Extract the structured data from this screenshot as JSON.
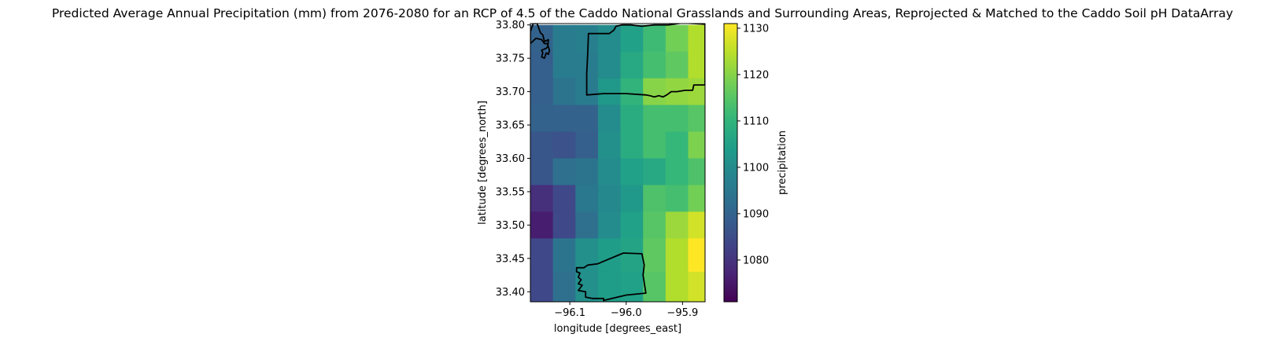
{
  "chart_data": {
    "type": "heatmap",
    "title": "Predicted Average Annual Precipitation (mm) from 2076-2080 for an RCP of 4.5 of the Caddo National Grasslands and Surrounding Areas, Reprojected & Matched to the Caddo Soil pH DataArray",
    "xlabel": "longitude [degrees_east]",
    "ylabel": "latitude [degrees_north]",
    "xlim": [
      -96.17,
      -95.86
    ],
    "ylim": [
      33.385,
      33.802
    ],
    "xticks": [
      -96.1,
      -96.0,
      -95.9
    ],
    "xtick_labels": [
      "−96.1",
      "−96.0",
      "−95.9"
    ],
    "yticks": [
      33.4,
      33.45,
      33.5,
      33.55,
      33.6,
      33.65,
      33.7,
      33.75,
      33.8
    ],
    "ytick_labels": [
      "33.40",
      "33.45",
      "33.50",
      "33.55",
      "33.60",
      "33.65",
      "33.70",
      "33.75",
      "33.80"
    ],
    "colormap": "viridis",
    "colorbar": {
      "label": "precipitation",
      "range": [
        1071,
        1131
      ],
      "ticks": [
        1080,
        1090,
        1100,
        1110,
        1120,
        1130
      ],
      "tick_labels": [
        "1080",
        "1090",
        "1100",
        "1110",
        "1120",
        "1130"
      ]
    },
    "row_lat_centers": [
      33.78,
      33.74,
      33.7,
      33.66,
      33.62,
      33.58,
      33.54,
      33.5,
      33.46,
      33.4
    ],
    "col_lon_centers": [
      -96.15,
      -96.11,
      -96.07,
      -96.03,
      -95.99,
      -95.95,
      -95.91,
      -95.87
    ],
    "grid_values": [
      [
        1090,
        1096,
        1097,
        1100,
        1105,
        1112,
        1118,
        1124
      ],
      [
        1089,
        1096,
        1096,
        1100,
        1107,
        1113,
        1116,
        1124
      ],
      [
        1089,
        1094,
        1096,
        1103,
        1110,
        1120,
        1121,
        1122
      ],
      [
        1090,
        1090,
        1090,
        1100,
        1108,
        1113,
        1113,
        1115
      ],
      [
        1087,
        1086,
        1089,
        1101,
        1108,
        1113,
        1111,
        1119
      ],
      [
        1087,
        1093,
        1094,
        1100,
        1105,
        1107,
        1111,
        1114
      ],
      [
        1079,
        1084,
        1095,
        1099,
        1103,
        1114,
        1113,
        1118
      ],
      [
        1076,
        1084,
        1093,
        1100,
        1105,
        1115,
        1122,
        1127
      ],
      [
        1084,
        1094,
        1101,
        1104,
        1106,
        1116,
        1124,
        1131
      ],
      [
        1084,
        1093,
        1101,
        1104,
        1105,
        1115,
        1124,
        1127
      ]
    ],
    "grid": false,
    "legend": "colorbar-right",
    "outline_color": "#000000",
    "boundaries": [
      [
        [
          -96.17,
          33.79
        ],
        [
          -96.165,
          33.802
        ],
        [
          -96.158,
          33.802
        ],
        [
          -96.152,
          33.788
        ],
        [
          -96.148,
          33.785
        ],
        [
          -96.145,
          33.775
        ],
        [
          -96.138,
          33.778
        ],
        [
          -96.139,
          33.768
        ],
        [
          -96.142,
          33.765
        ],
        [
          -96.15,
          33.762
        ],
        [
          -96.148,
          33.758
        ],
        [
          -96.15,
          33.752
        ],
        [
          -96.145,
          33.75
        ],
        [
          -96.142,
          33.758
        ],
        [
          -96.138,
          33.756
        ],
        [
          -96.136,
          33.762
        ],
        [
          -96.14,
          33.772
        ],
        [
          -96.145,
          33.772
        ],
        [
          -96.15,
          33.778
        ],
        [
          -96.16,
          33.78
        ],
        [
          -96.17,
          33.772
        ]
      ],
      [
        [
          -96.067,
          33.787
        ],
        [
          -96.03,
          33.787
        ],
        [
          -96.022,
          33.792
        ],
        [
          -96.018,
          33.798
        ],
        [
          -96.008,
          33.8
        ],
        [
          -95.992,
          33.8
        ],
        [
          -95.972,
          33.798
        ],
        [
          -95.95,
          33.8
        ],
        [
          -95.925,
          33.8
        ],
        [
          -95.9,
          33.803
        ],
        [
          -95.88,
          33.802
        ],
        [
          -95.86,
          33.801
        ],
        [
          -95.86,
          33.71
        ],
        [
          -95.88,
          33.71
        ],
        [
          -95.882,
          33.702
        ],
        [
          -95.895,
          33.702
        ],
        [
          -95.91,
          33.7
        ],
        [
          -95.92,
          33.7
        ],
        [
          -95.928,
          33.695
        ],
        [
          -95.935,
          33.692
        ],
        [
          -95.942,
          33.694
        ],
        [
          -95.95,
          33.692
        ],
        [
          -95.958,
          33.694
        ],
        [
          -95.965,
          33.695
        ],
        [
          -96.0,
          33.697
        ],
        [
          -96.04,
          33.697
        ],
        [
          -96.07,
          33.695
        ],
        [
          -96.07,
          33.727
        ],
        [
          -96.068,
          33.76
        ]
      ],
      [
        [
          -96.005,
          33.458
        ],
        [
          -95.972,
          33.457
        ],
        [
          -95.968,
          33.44
        ],
        [
          -95.97,
          33.425
        ],
        [
          -95.965,
          33.398
        ],
        [
          -96.0,
          33.395
        ],
        [
          -96.04,
          33.387
        ],
        [
          -96.04,
          33.39
        ],
        [
          -96.06,
          33.39
        ],
        [
          -96.072,
          33.392
        ],
        [
          -96.072,
          33.4
        ],
        [
          -96.085,
          33.402
        ],
        [
          -96.078,
          33.41
        ],
        [
          -96.085,
          33.412
        ],
        [
          -96.08,
          33.418
        ],
        [
          -96.085,
          33.422
        ],
        [
          -96.082,
          33.428
        ],
        [
          -96.088,
          33.43
        ],
        [
          -96.088,
          33.436
        ],
        [
          -96.075,
          33.436
        ],
        [
          -96.068,
          33.44
        ],
        [
          -96.05,
          33.442
        ],
        [
          -96.042,
          33.445
        ]
      ]
    ]
  }
}
